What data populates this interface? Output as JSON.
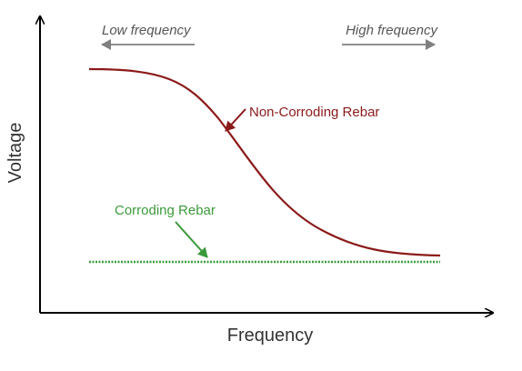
{
  "chart_data": {
    "type": "line",
    "title": "",
    "xlabel": "Frequency",
    "ylabel": "Voltage",
    "top_labels": {
      "left": "Low frequency",
      "right": "High frequency"
    },
    "grid": false,
    "legend": "none",
    "series": [
      {
        "name": "Non-Corroding Rebar",
        "color": "#8b1a1a",
        "style": "solid",
        "trend": "sigmoid decrease from high to low as frequency increases"
      },
      {
        "name": "Corroding Rebar",
        "color": "#3a9a3a",
        "style": "dashed",
        "trend": "constant low voltage across all frequencies"
      }
    ],
    "annotations": [
      {
        "text": "Non-Corroding Rebar",
        "color": "#8b1a1a",
        "points_to": "Non-Corroding Rebar"
      },
      {
        "text": "Corroding Rebar",
        "color": "#3a9a3a",
        "points_to": "Corroding Rebar"
      }
    ]
  },
  "colors": {
    "axis": "#000000",
    "top_label": "#555555",
    "top_arrow": "#808080",
    "axis_title": "#333333"
  }
}
